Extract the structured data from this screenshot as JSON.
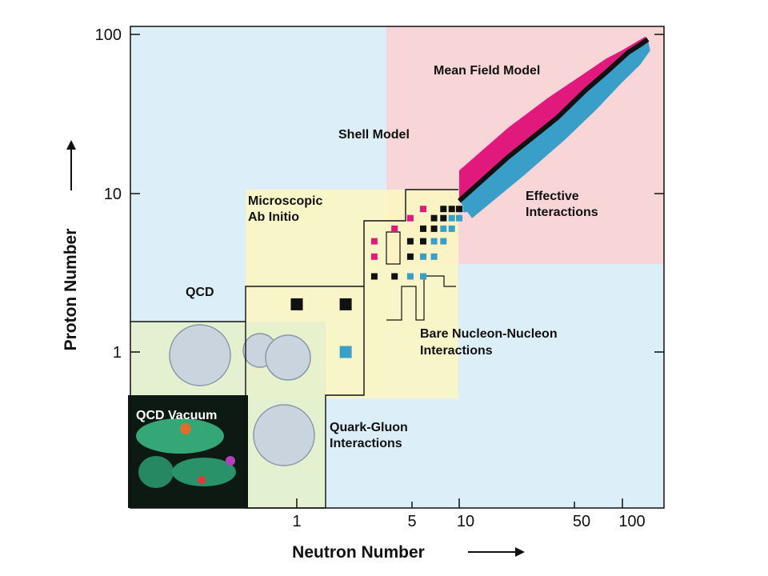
{
  "chart_data": {
    "type": "scatter",
    "title": "",
    "xlabel": "Neutron Number",
    "ylabel": "Proton Number",
    "x_scale": "log",
    "y_scale": "log",
    "xlim": [
      0.1,
      160
    ],
    "ylim": [
      0.1,
      110
    ],
    "x_ticks": [
      1,
      5,
      10,
      50,
      100
    ],
    "y_ticks": [
      1,
      10,
      100
    ],
    "regions": [
      {
        "name": "QCD",
        "label": "QCD",
        "color": "#dceef7"
      },
      {
        "name": "Shell Model",
        "label": "Shell Model",
        "color": "#dceef7"
      },
      {
        "name": "Mean Field Model",
        "label": "Mean Field Model",
        "color": "#f8d6d8"
      },
      {
        "name": "Effective Interactions",
        "label": "Effective\nInteractions",
        "color": "#f8d6d8"
      },
      {
        "name": "Microscopic Ab Initio",
        "label": "Microscopic\nAb Initio",
        "color": "#fbf6c2"
      },
      {
        "name": "Bare Nucleon-Nucleon Interactions",
        "label": "Bare Nucleon-Nucleon\nInteractions",
        "color": "#fbf6c2"
      },
      {
        "name": "Quark-Gluon Interactions",
        "label": "Quark-Gluon\nInteractions",
        "color": "#e4f1cc"
      },
      {
        "name": "QCD Vacuum",
        "label": "QCD Vacuum",
        "color": "#111111"
      }
    ],
    "colors": {
      "stable": "#111111",
      "neutron_rich": "#3a9fc8",
      "proton_rich": "#e2197c",
      "pink_bg": "#f8d6d8",
      "blue_bg": "#dceef7",
      "yellow_bg": "#fbf6c2",
      "green_bg": "#e4f1cc"
    },
    "nuclei": [
      {
        "n": 1,
        "z": 2,
        "type": "stable"
      },
      {
        "n": 2,
        "z": 2,
        "type": "stable"
      },
      {
        "n": 2,
        "z": 1,
        "type": "neutron_rich"
      },
      {
        "n": 3,
        "z": 3,
        "type": "stable"
      },
      {
        "n": 4,
        "z": 3,
        "type": "stable"
      },
      {
        "n": 5,
        "z": 3,
        "type": "neutron_rich"
      },
      {
        "n": 6,
        "z": 3,
        "type": "neutron_rich"
      },
      {
        "n": 3,
        "z": 4,
        "type": "proton_rich"
      },
      {
        "n": 5,
        "z": 4,
        "type": "stable"
      },
      {
        "n": 6,
        "z": 4,
        "type": "neutron_rich"
      },
      {
        "n": 7,
        "z": 4,
        "type": "neutron_rich"
      },
      {
        "n": 3,
        "z": 5,
        "type": "proton_rich"
      },
      {
        "n": 5,
        "z": 5,
        "type": "stable"
      },
      {
        "n": 6,
        "z": 5,
        "type": "stable"
      },
      {
        "n": 7,
        "z": 5,
        "type": "neutron_rich"
      },
      {
        "n": 8,
        "z": 5,
        "type": "neutron_rich"
      },
      {
        "n": 4,
        "z": 6,
        "type": "proton_rich"
      },
      {
        "n": 6,
        "z": 6,
        "type": "stable"
      },
      {
        "n": 7,
        "z": 6,
        "type": "stable"
      },
      {
        "n": 8,
        "z": 6,
        "type": "neutron_rich"
      },
      {
        "n": 9,
        "z": 6,
        "type": "neutron_rich"
      },
      {
        "n": 5,
        "z": 7,
        "type": "proton_rich"
      },
      {
        "n": 7,
        "z": 7,
        "type": "stable"
      },
      {
        "n": 8,
        "z": 7,
        "type": "stable"
      },
      {
        "n": 9,
        "z": 7,
        "type": "neutron_rich"
      },
      {
        "n": 10,
        "z": 7,
        "type": "neutron_rich"
      },
      {
        "n": 6,
        "z": 8,
        "type": "proton_rich"
      },
      {
        "n": 8,
        "z": 8,
        "type": "stable"
      },
      {
        "n": 9,
        "z": 8,
        "type": "stable"
      },
      {
        "n": 10,
        "z": 8,
        "type": "stable"
      },
      {
        "n": 11,
        "z": 8,
        "type": "neutron_rich"
      },
      {
        "n": 12,
        "z": 8,
        "type": "neutron_rich"
      }
    ],
    "band": {
      "stable": [
        [
          10,
          9
        ],
        [
          20,
          17
        ],
        [
          40,
          30
        ],
        [
          60,
          45
        ],
        [
          80,
          58
        ],
        [
          110,
          78
        ],
        [
          130,
          87
        ],
        [
          145,
          94
        ]
      ],
      "proton_edge": [
        [
          10,
          14
        ],
        [
          20,
          26
        ],
        [
          35,
          40
        ],
        [
          60,
          58
        ],
        [
          80,
          71
        ],
        [
          100,
          80
        ],
        [
          140,
          98
        ]
      ],
      "neutron_edge": [
        [
          12,
          7
        ],
        [
          25,
          13
        ],
        [
          45,
          22
        ],
        [
          70,
          34
        ],
        [
          100,
          50
        ],
        [
          130,
          65
        ],
        [
          150,
          80
        ]
      ]
    }
  },
  "labels": {
    "qcd": "QCD",
    "shell_model": "Shell Model",
    "mean_field": "Mean Field Model",
    "effective_1": "Effective",
    "effective_2": "Interactions",
    "micro_1": "Microscopic",
    "micro_2": "Ab Initio",
    "bare_1": "Bare Nucleon-Nucleon",
    "bare_2": "Interactions",
    "quark_1": "Quark-Gluon",
    "quark_2": "Interactions",
    "vacuum": "QCD Vacuum"
  },
  "ticks": {
    "y_100": "100",
    "y_10": "10",
    "y_1": "1",
    "x_1": "1",
    "x_5": "5",
    "x_10": "10",
    "x_50": "50",
    "x_100": "100"
  },
  "axes": {
    "x_title": "Neutron Number",
    "y_title": "Proton Number"
  }
}
